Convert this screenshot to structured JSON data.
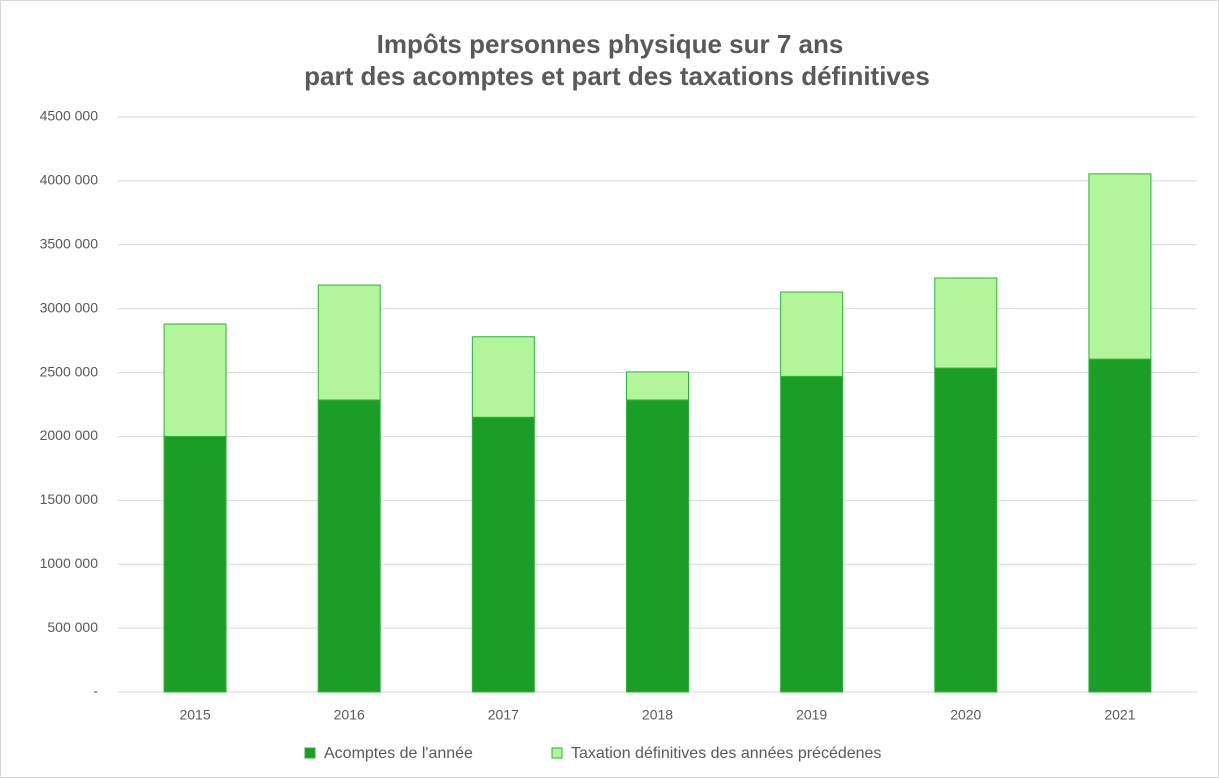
{
  "chart_data": {
    "type": "stacked_bar",
    "title": [
      "Impôts personnes physique sur 7 ans",
      "part des acomptes et part des taxations définitives"
    ],
    "categories": [
      "2015",
      "2016",
      "2017",
      "2018",
      "2019",
      "2020",
      "2021"
    ],
    "series": [
      {
        "name": "Acomptes de l'année",
        "color": "#1a9e25",
        "values": [
          2000000,
          2285000,
          2150000,
          2285000,
          2470000,
          2535000,
          2605000
        ]
      },
      {
        "name": "Taxation définitives des années précédenes",
        "color": "#b3f59b",
        "values": [
          880000,
          900000,
          630000,
          220000,
          660000,
          705000,
          1450000
        ]
      }
    ],
    "ylim": [
      0,
      4500000
    ],
    "yticks": [
      {
        "value": 0,
        "label": "-"
      },
      {
        "value": 500000,
        "label": "500 000"
      },
      {
        "value": 1000000,
        "label": "1000 000"
      },
      {
        "value": 1500000,
        "label": "1500 000"
      },
      {
        "value": 2000000,
        "label": "2000 000"
      },
      {
        "value": 2500000,
        "label": "2500 000"
      },
      {
        "value": 3000000,
        "label": "3000 000"
      },
      {
        "value": 3500000,
        "label": "3500 000"
      },
      {
        "value": 4000000,
        "label": "4000 000"
      },
      {
        "value": 4500000,
        "label": "4500 000"
      }
    ],
    "grid": true,
    "legend": "bottom"
  }
}
